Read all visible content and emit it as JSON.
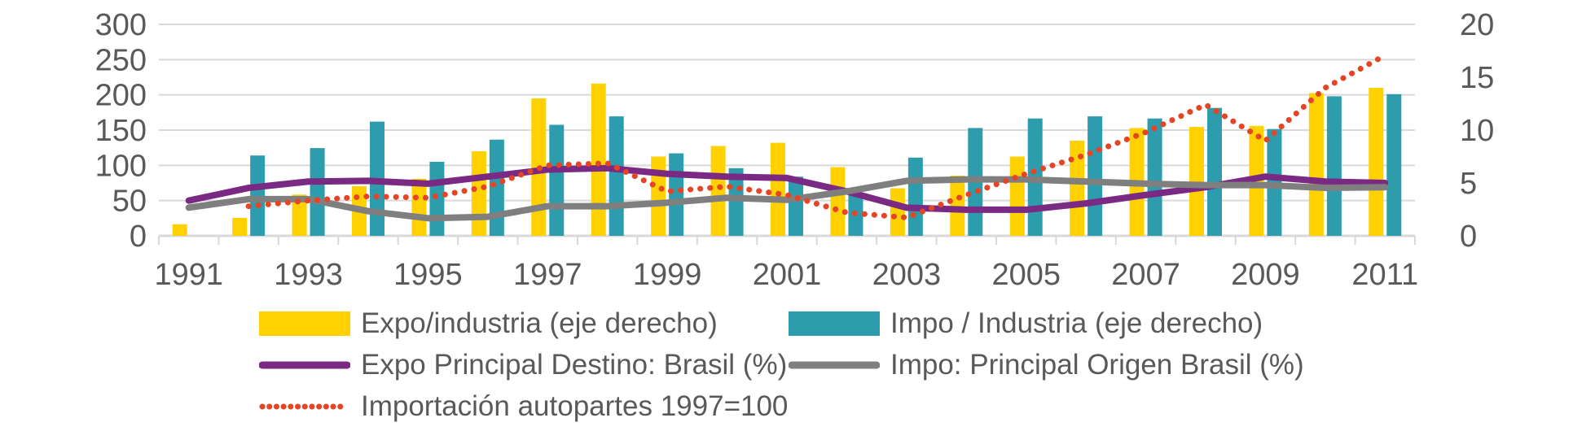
{
  "chart_data": {
    "type": "combo",
    "title": "",
    "years": [
      1991,
      1992,
      1993,
      1994,
      1995,
      1996,
      1997,
      1998,
      1999,
      2000,
      2001,
      2002,
      2003,
      2004,
      2005,
      2006,
      2007,
      2008,
      2009,
      2010,
      2011
    ],
    "x_tick_labels": [
      "1991",
      "1993",
      "1995",
      "1997",
      "1999",
      "2001",
      "2003",
      "2005",
      "2007",
      "2009",
      "2011"
    ],
    "left_axis": {
      "min": 0,
      "max": 300,
      "step": 50,
      "tick_labels": [
        "0",
        "50",
        "100",
        "150",
        "200",
        "250",
        "300"
      ]
    },
    "right_axis": {
      "min": 0,
      "max": 20,
      "step": 5,
      "tick_labels": [
        "0",
        "5",
        "10",
        "15",
        "20"
      ]
    },
    "grid": true,
    "legend_position": "bottom",
    "legend_rows": [
      [
        0,
        1
      ],
      [
        2,
        3
      ],
      [
        4
      ]
    ],
    "series": [
      {
        "name": "Expo/industria (eje derecho)",
        "type": "bar",
        "axis": "right",
        "color": "#FFD100",
        "values": [
          1.1,
          1.7,
          3.9,
          4.7,
          5.4,
          8.0,
          13.0,
          14.4,
          7.5,
          8.5,
          8.8,
          6.5,
          4.5,
          5.7,
          7.5,
          9.0,
          10.2,
          10.3,
          10.4,
          13.5,
          14.0
        ]
      },
      {
        "name": "Impo / Industria (eje derecho)",
        "type": "bar",
        "axis": "right",
        "color": "#2D9CAD",
        "values": [
          null,
          7.6,
          8.3,
          10.8,
          7.0,
          9.1,
          10.5,
          11.3,
          7.8,
          6.4,
          5.6,
          4.0,
          7.4,
          10.2,
          11.1,
          11.3,
          11.1,
          12.1,
          10.1,
          13.2,
          13.4
        ]
      },
      {
        "name": "Expo Principal Destino: Brasil (%)",
        "type": "line",
        "axis": "left",
        "color": "#7A2A82",
        "dashed": false,
        "values": [
          50,
          68,
          77,
          78,
          74,
          84,
          94,
          96,
          88,
          84,
          82,
          63,
          40,
          37,
          37,
          46,
          58,
          69,
          84,
          77,
          75
        ]
      },
      {
        "name": "Impo: Principal Origen Brasil (%)",
        "type": "line",
        "axis": "left",
        "color": "#7F7F7F",
        "dashed": false,
        "values": [
          40,
          52,
          52,
          35,
          25,
          27,
          42,
          42,
          47,
          54,
          51,
          63,
          78,
          80,
          80,
          77,
          74,
          72,
          72,
          68,
          69
        ]
      },
      {
        "name": "Importación autopartes 1997=100",
        "type": "line",
        "axis": "left",
        "color": "#E54425",
        "dashed": true,
        "values": [
          null,
          42,
          50,
          56,
          54,
          70,
          100,
          103,
          63,
          70,
          58,
          33,
          26,
          58,
          88,
          115,
          147,
          186,
          135,
          210,
          256
        ]
      }
    ]
  },
  "style": {
    "axis_text_color": "#595959",
    "gridline_color": "#D9D9D9",
    "background": "#ffffff"
  }
}
